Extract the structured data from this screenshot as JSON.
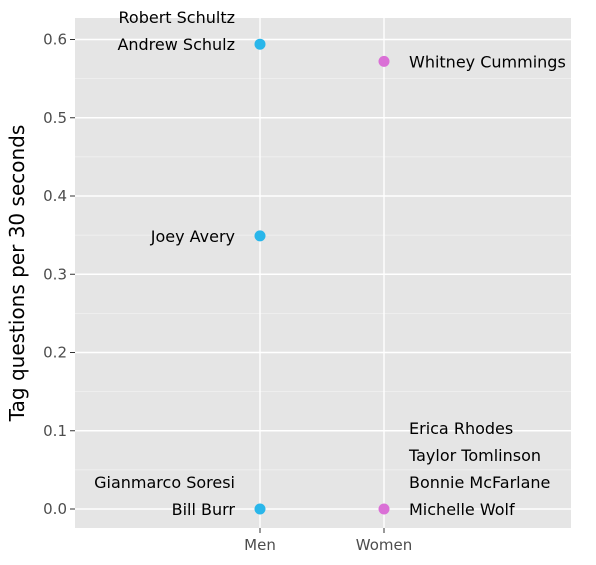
{
  "chart_data": {
    "type": "scatter",
    "title": "",
    "xlabel": "",
    "ylabel": "Tag questions per 30 seconds",
    "categories": [
      "Men",
      "Women"
    ],
    "ylim": [
      -0.025,
      0.625
    ],
    "yticks": [
      "0.0",
      "0.1",
      "0.2",
      "0.3",
      "0.4",
      "0.5",
      "0.6"
    ],
    "grid": true,
    "points": [
      {
        "category": "Men",
        "y": 0.594,
        "color": "#29b6ea",
        "labels": [
          "Robert Schultz",
          "Andrew Schulz"
        ],
        "label_side": "left"
      },
      {
        "category": "Men",
        "y": 0.349,
        "color": "#29b6ea",
        "labels": [
          "Joey Avery"
        ],
        "label_side": "left"
      },
      {
        "category": "Men",
        "y": 0.0,
        "color": "#29b6ea",
        "labels": [
          "Gianmarco Soresi",
          "Bill Burr"
        ],
        "label_side": "left"
      },
      {
        "category": "Women",
        "y": 0.572,
        "color": "#da70d6",
        "labels": [
          "Whitney Cummings"
        ],
        "label_side": "right"
      },
      {
        "category": "Women",
        "y": 0.0,
        "color": "#da70d6",
        "labels": [
          "Erica Rhodes",
          "Taylor Tomlinson",
          "Bonnie McFarlane",
          "Michelle Wolf"
        ],
        "label_side": "right"
      }
    ]
  }
}
